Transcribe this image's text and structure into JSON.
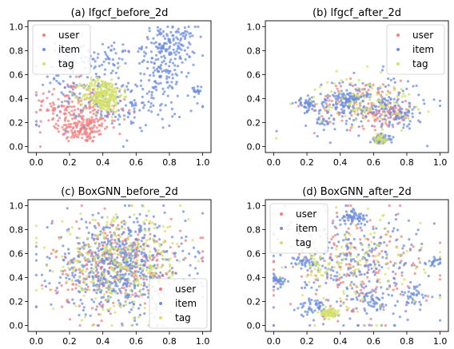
{
  "chart_data": [
    {
      "type": "scatter",
      "title": "(a) lfgcf_before_2d",
      "xlim": [
        -0.05,
        1.05
      ],
      "ylim": [
        -0.05,
        1.05
      ],
      "xticks": [
        "0.0",
        "0.2",
        "0.4",
        "0.6",
        "0.8",
        "1.0"
      ],
      "yticks": [
        "0.0",
        "0.2",
        "0.4",
        "0.6",
        "0.8",
        "1.0"
      ],
      "legend": "upper-left",
      "series": [
        {
          "name": "user",
          "color": "#f08080",
          "clusters": [
            [
              0.28,
              0.15,
              0.08,
              0.06,
              150
            ],
            [
              0.18,
              0.35,
              0.1,
              0.1,
              90
            ],
            [
              0.35,
              0.3,
              0.1,
              0.08,
              60
            ]
          ]
        },
        {
          "name": "item",
          "color": "#6f8fdc",
          "clusters": [
            [
              0.8,
              0.85,
              0.08,
              0.08,
              150
            ],
            [
              0.78,
              0.6,
              0.07,
              0.07,
              60
            ],
            [
              0.45,
              0.75,
              0.1,
              0.05,
              50
            ],
            [
              0.6,
              0.35,
              0.15,
              0.1,
              110
            ],
            [
              0.95,
              0.45,
              0.02,
              0.03,
              18
            ],
            [
              0.3,
              0.5,
              0.18,
              0.15,
              120
            ]
          ]
        },
        {
          "name": "tag",
          "color": "#d4e06a",
          "clusters": [
            [
              0.4,
              0.43,
              0.06,
              0.07,
              260
            ]
          ]
        }
      ]
    },
    {
      "type": "scatter",
      "title": "(b) lfgcf_after_2d",
      "xlim": [
        -0.05,
        1.05
      ],
      "ylim": [
        -0.05,
        1.05
      ],
      "xticks": [
        "0.0",
        "0.2",
        "0.4",
        "0.6",
        "0.8",
        "1.0"
      ],
      "yticks": [
        "0.0",
        "0.2",
        "0.4",
        "0.6",
        "0.8",
        "1.0"
      ],
      "legend": "upper-right",
      "series": [
        {
          "name": "user",
          "color": "#f08080",
          "clusters": [
            [
              0.55,
              0.35,
              0.15,
              0.1,
              120
            ],
            [
              0.7,
              0.28,
              0.06,
              0.05,
              50
            ]
          ]
        },
        {
          "name": "item",
          "color": "#6f8fdc",
          "clusters": [
            [
              0.45,
              0.4,
              0.04,
              0.03,
              80
            ],
            [
              0.64,
              0.06,
              0.03,
              0.02,
              60
            ],
            [
              0.2,
              0.35,
              0.03,
              0.03,
              40
            ],
            [
              0.55,
              0.35,
              0.18,
              0.12,
              200
            ],
            [
              0.3,
              0.2,
              0.02,
              0.02,
              15
            ],
            [
              0.75,
              0.28,
              0.05,
              0.05,
              50
            ]
          ]
        },
        {
          "name": "tag",
          "color": "#d4e06a",
          "clusters": [
            [
              0.55,
              0.38,
              0.15,
              0.1,
              110
            ],
            [
              0.64,
              0.07,
              0.02,
              0.02,
              30
            ],
            [
              0.0,
              0.06,
              0.01,
              0.01,
              1
            ]
          ]
        }
      ]
    },
    {
      "type": "scatter",
      "title": "(c) BoxGNN_before_2d",
      "xlim": [
        -0.05,
        1.05
      ],
      "ylim": [
        -0.05,
        1.05
      ],
      "xticks": [
        "0.0",
        "0.2",
        "0.4",
        "0.6",
        "0.8",
        "1.0"
      ],
      "yticks": [
        "0.0",
        "0.2",
        "0.4",
        "0.6",
        "0.8",
        "1.0"
      ],
      "legend": "lower-right",
      "series": [
        {
          "name": "user",
          "color": "#f08080",
          "clusters": [
            [
              0.5,
              0.5,
              0.2,
              0.2,
              320
            ]
          ]
        },
        {
          "name": "item",
          "color": "#6f8fdc",
          "clusters": [
            [
              0.5,
              0.5,
              0.2,
              0.2,
              620
            ]
          ]
        },
        {
          "name": "tag",
          "color": "#d4e06a",
          "clusters": [
            [
              0.5,
              0.5,
              0.2,
              0.2,
              320
            ]
          ]
        }
      ]
    },
    {
      "type": "scatter",
      "title": "(d) BoxGNN_after_2d",
      "xlim": [
        -0.05,
        1.05
      ],
      "ylim": [
        -0.05,
        1.05
      ],
      "xticks": [
        "0.0",
        "0.2",
        "0.4",
        "0.6",
        "0.8",
        "1.0"
      ],
      "yticks": [
        "0.0",
        "0.2",
        "0.4",
        "0.6",
        "0.8",
        "1.0"
      ],
      "legend": "upper-left",
      "series": [
        {
          "name": "user",
          "color": "#f08080",
          "clusters": [
            [
              0.5,
              0.5,
              0.22,
              0.22,
              180
            ]
          ]
        },
        {
          "name": "item",
          "color": "#6f8fdc",
          "clusters": [
            [
              0.5,
              0.5,
              0.22,
              0.22,
              280
            ],
            [
              0.48,
              0.9,
              0.04,
              0.03,
              60
            ],
            [
              0.03,
              0.38,
              0.02,
              0.02,
              30
            ],
            [
              0.18,
              0.53,
              0.03,
              0.03,
              35
            ],
            [
              0.25,
              0.15,
              0.05,
              0.04,
              50
            ],
            [
              0.97,
              0.53,
              0.02,
              0.02,
              20
            ],
            [
              0.6,
              0.2,
              0.05,
              0.04,
              40
            ],
            [
              0.85,
              0.25,
              0.04,
              0.04,
              30
            ]
          ]
        },
        {
          "name": "tag",
          "color": "#d4e06a",
          "clusters": [
            [
              0.33,
              0.1,
              0.03,
              0.02,
              60
            ],
            [
              0.5,
              0.5,
              0.2,
              0.2,
              120
            ],
            [
              0.27,
              0.5,
              0.04,
              0.05,
              30
            ]
          ]
        }
      ]
    }
  ]
}
